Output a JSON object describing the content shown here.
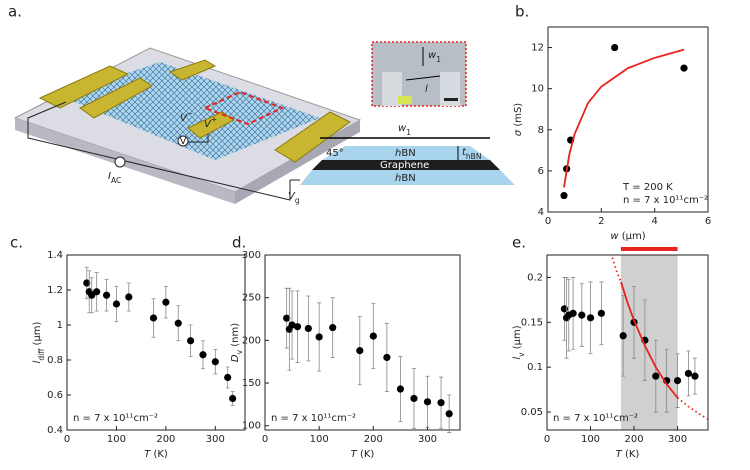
{
  "panel_a": {
    "letter": "a.",
    "labels": {
      "w1": {
        "main": "w",
        "sub": "1"
      },
      "inset_w": {
        "main": "w",
        "sub": "1"
      },
      "inset_l": {
        "main": "l"
      },
      "v_minus": {
        "main": "V",
        "sup": "−"
      },
      "v_plus": {
        "main": "V",
        "sup": "+"
      },
      "voltmeter": "V",
      "iac": {
        "main": "I",
        "sub": "AC"
      },
      "vg": {
        "main": "V",
        "sub": "g"
      },
      "angle": "45°",
      "top_hbn": {
        "main": "h",
        "rest": "BN"
      },
      "thbn": {
        "main": "t",
        "sub": "hBN"
      },
      "graphene": "Graphene",
      "bottom_hbn": {
        "main": "h",
        "rest": "BN"
      }
    }
  },
  "chart_data": [
    {
      "panel": "b.",
      "type": "scatter",
      "xlabel": {
        "main": "w",
        "rest": " (µm)"
      },
      "ylabel": {
        "main": "σ",
        "rest": " (mS)"
      },
      "xlim": [
        0,
        6
      ],
      "xticks": [
        0,
        2,
        4,
        6
      ],
      "ylim": [
        4,
        13
      ],
      "yticks": [
        4,
        6,
        8,
        10,
        12
      ],
      "series": [
        {
          "color": "#000000",
          "x": [
            0.6,
            0.7,
            0.85,
            2.5,
            5.1
          ],
          "values": [
            4.8,
            6.1,
            7.5,
            12,
            11
          ]
        },
        {
          "kind": "line",
          "color": "#e8221c",
          "x": [
            0.6,
            0.8,
            1,
            1.5,
            2,
            3,
            4,
            5.1
          ],
          "values": [
            5.2,
            6.8,
            7.8,
            9.3,
            10.1,
            11,
            11.5,
            11.9
          ]
        }
      ],
      "annotations": [
        "T = 200 K",
        "n = 7 x 10¹¹cm⁻²"
      ]
    },
    {
      "panel": "c.",
      "type": "scatter",
      "xlabel": {
        "main": "T",
        "rest": " (K)"
      },
      "ylabel": {
        "main": "l",
        "sub": "diff",
        "rest": " (µm)"
      },
      "xlim": [
        0,
        360
      ],
      "xticks": [
        0,
        100,
        200,
        300
      ],
      "ylim": [
        0.4,
        1.4
      ],
      "yticks": [
        0.4,
        0.6,
        0.8,
        1,
        1.2,
        1.4
      ],
      "series": [
        {
          "color": "#000000",
          "x": [
            40,
            45,
            50,
            60,
            80,
            100,
            125,
            175,
            200,
            225,
            250,
            275,
            300,
            325,
            335
          ],
          "values": [
            1.24,
            1.19,
            1.17,
            1.19,
            1.17,
            1.12,
            1.16,
            1.04,
            1.13,
            1.01,
            0.91,
            0.83,
            0.79,
            0.7,
            0.58
          ],
          "errors": [
            0.09,
            0.12,
            0.1,
            0.11,
            0.09,
            0.1,
            0.08,
            0.11,
            0.09,
            0.1,
            0.09,
            0.08,
            0.07,
            0.06,
            0.04
          ]
        }
      ],
      "annotations": [
        "n = 7 x 10¹¹cm⁻²"
      ]
    },
    {
      "panel": "d.",
      "type": "scatter",
      "xlabel": {
        "main": "T",
        "rest": " (K)"
      },
      "ylabel": {
        "main": "D",
        "sub": "v",
        "rest": " (nm)"
      },
      "xlim": [
        0,
        360
      ],
      "xticks": [
        0,
        100,
        200,
        300
      ],
      "ylim": [
        95,
        300
      ],
      "yticks": [
        100,
        150,
        200,
        250,
        300
      ],
      "series": [
        {
          "color": "#000000",
          "x": [
            40,
            45,
            50,
            60,
            80,
            100,
            125,
            175,
            200,
            225,
            250,
            275,
            300,
            325,
            340
          ],
          "values": [
            226,
            213,
            218,
            216,
            214,
            204,
            215,
            188,
            205,
            180,
            143,
            132,
            128,
            127,
            114
          ],
          "errors": [
            35,
            48,
            40,
            42,
            38,
            40,
            35,
            40,
            38,
            40,
            38,
            35,
            30,
            30,
            22
          ]
        }
      ],
      "annotations": [
        "n = 7 x 10¹¹cm⁻²"
      ]
    },
    {
      "panel": "e.",
      "type": "scatter",
      "xlabel": {
        "main": "T",
        "rest": " (K)"
      },
      "ylabel": {
        "main": "l",
        "sub": "v",
        "rest": " (µm)"
      },
      "xlim": [
        0,
        370
      ],
      "xticks": [
        0,
        100,
        200,
        300
      ],
      "ylim": [
        0.03,
        0.225
      ],
      "yticks": [
        0.05,
        0.1,
        0.15,
        0.2
      ],
      "highlight": [
        170,
        300
      ],
      "highlight_color": "#d0d0d0",
      "bar_color": "#e8221c",
      "series": [
        {
          "color": "#000000",
          "x": [
            40,
            45,
            50,
            60,
            80,
            100,
            125,
            175,
            200,
            225,
            250,
            275,
            300,
            325,
            340
          ],
          "values": [
            0.165,
            0.155,
            0.158,
            0.16,
            0.158,
            0.155,
            0.16,
            0.135,
            0.15,
            0.13,
            0.09,
            0.085,
            0.085,
            0.093,
            0.09
          ],
          "errors": [
            0.035,
            0.045,
            0.04,
            0.04,
            0.035,
            0.04,
            0.035,
            0.045,
            0.04,
            0.045,
            0.04,
            0.035,
            0.03,
            0.025,
            0.02
          ]
        },
        {
          "kind": "line",
          "dotted": true,
          "color": "#e8221c",
          "x": [
            150,
            160,
            170
          ],
          "values": [
            0.222,
            0.207,
            0.195
          ]
        },
        {
          "kind": "line",
          "color": "#e8221c",
          "x": [
            170,
            185,
            200,
            225,
            250,
            275,
            300
          ],
          "values": [
            0.195,
            0.172,
            0.152,
            0.124,
            0.1,
            0.081,
            0.066
          ]
        },
        {
          "kind": "line",
          "dotted": true,
          "color": "#e8221c",
          "x": [
            300,
            325,
            350,
            370
          ],
          "values": [
            0.066,
            0.056,
            0.048,
            0.042
          ]
        }
      ],
      "annotations": [
        "n = 7 x 10¹¹cm⁻²"
      ]
    }
  ]
}
